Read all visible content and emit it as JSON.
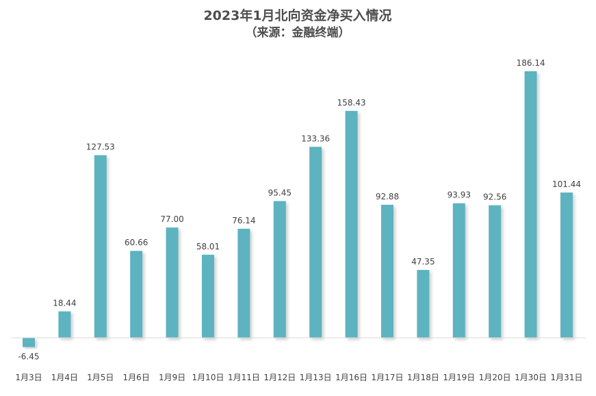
{
  "chart_data": {
    "type": "bar",
    "title": "2023年1月北向资金净买入情况",
    "subtitle": "（来源：金融终端）",
    "categories": [
      "1月3日",
      "1月4日",
      "1月5日",
      "1月6日",
      "1月9日",
      "1月10日",
      "1月11日",
      "1月12日",
      "1月13日",
      "1月16日",
      "1月17日",
      "1月18日",
      "1月19日",
      "1月20日",
      "1月30日",
      "1月31日"
    ],
    "values": [
      -6.45,
      18.44,
      127.53,
      60.66,
      77.0,
      58.01,
      76.14,
      95.45,
      133.36,
      158.43,
      92.88,
      47.35,
      93.93,
      92.56,
      186.14,
      101.44
    ],
    "value_labels": [
      "-6.45",
      "18.44",
      "127.53",
      "60.66",
      "77.00",
      "58.01",
      "76.14",
      "95.45",
      "133.36",
      "158.43",
      "92.88",
      "47.35",
      "93.93",
      "92.56",
      "186.14",
      "101.44"
    ],
    "bar_color": "#5db3c0",
    "xlabel": "",
    "ylabel": "",
    "ylim": [
      -6.45,
      186.14
    ],
    "grid": false,
    "legend": "none"
  }
}
